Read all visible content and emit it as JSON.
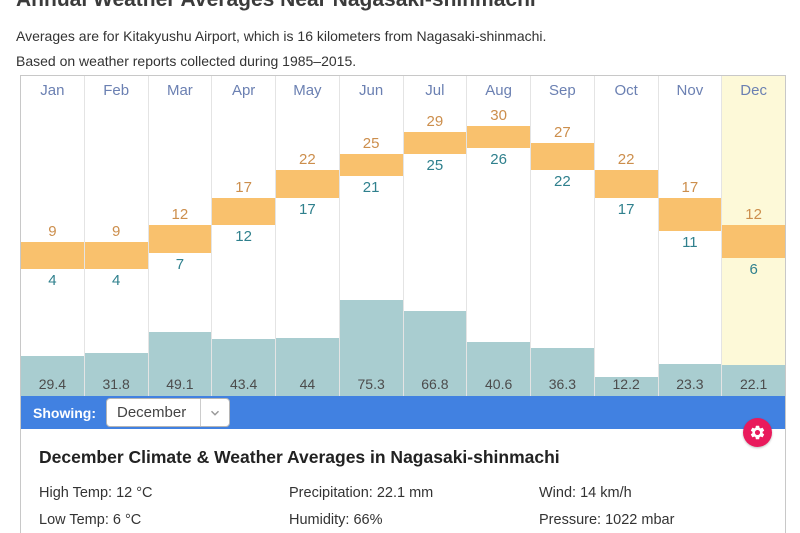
{
  "page": {
    "title": "Annual Weather Averages Near Nagasaki-shinmachi",
    "subtitle1": "Averages are for Kitakyushu Airport, which is 16 kilometers from Nagasaki-shinmachi.",
    "subtitle2": "Based on weather reports collected during 1985–2015."
  },
  "chart_data": {
    "type": "bar",
    "title": "Annual Weather Averages Near Nagasaki-shinmachi",
    "categories": [
      "Jan",
      "Feb",
      "Mar",
      "Apr",
      "May",
      "Jun",
      "Jul",
      "Aug",
      "Sep",
      "Oct",
      "Nov",
      "Dec"
    ],
    "series": [
      {
        "name": "High Temp (°C)",
        "values": [
          9,
          9,
          12,
          17,
          22,
          25,
          29,
          30,
          27,
          22,
          17,
          12
        ]
      },
      {
        "name": "Low Temp (°C)",
        "values": [
          4,
          4,
          7,
          12,
          17,
          21,
          25,
          26,
          22,
          17,
          11,
          6
        ]
      },
      {
        "name": "Precipitation (mm)",
        "values": [
          29.4,
          31.8,
          49.1,
          43.4,
          44,
          75.3,
          66.8,
          40.6,
          36.3,
          12.2,
          23.3,
          22.1
        ]
      }
    ],
    "highlighted_category": "Dec",
    "xlabel": "",
    "ylabel": "",
    "legend": "none",
    "grid": "column-separators-only"
  },
  "theme": {
    "accent_blue": "#4181e1",
    "gear_pink": "#e91a5c",
    "temp_bar_orange": "#f9c16d",
    "high_label_orange": "#cc8e4c",
    "low_label_teal": "#2f808d",
    "precip_bar_teal": "#a9cdd0",
    "month_label_blue": "#6b80b2",
    "highlight_yellow": "#fdf9d8"
  },
  "showing_bar": {
    "label": "Showing:",
    "selected": "December"
  },
  "details": {
    "heading": "December Climate & Weather Averages in Nagasaki-shinmachi",
    "stats": [
      "High Temp: 12 °C",
      "Precipitation: 22.1 mm",
      "Wind: 14 km/h",
      "Low Temp: 6 °C",
      "Humidity: 66%",
      "Pressure: 1022 mbar"
    ]
  }
}
